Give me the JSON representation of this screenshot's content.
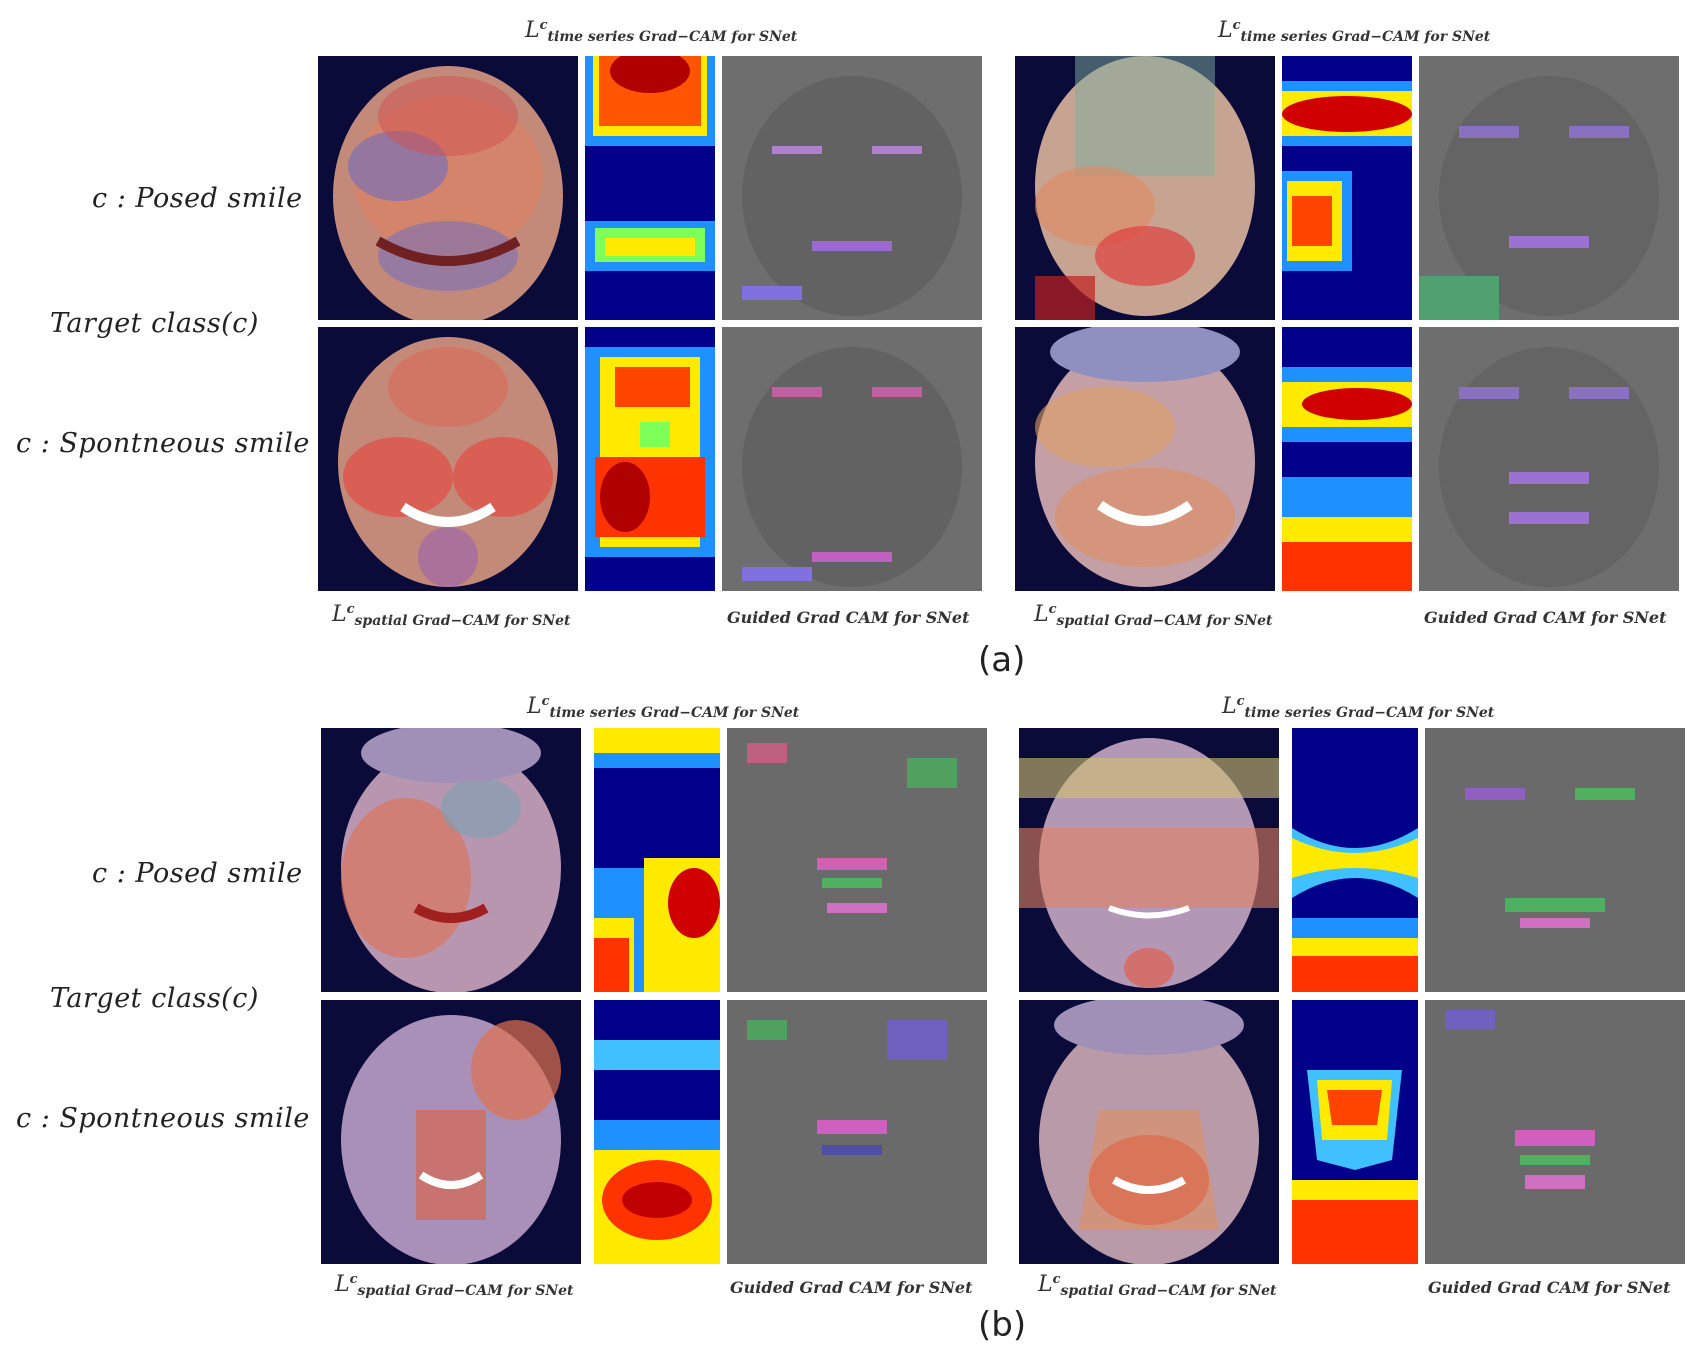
{
  "panels": [
    {
      "label": "(a)",
      "row_labels": {
        "posed": "c : Posed smile",
        "target": "Target class(c)",
        "spontaneous": "c : Spontneous smile"
      },
      "captions": {
        "time_series_left": {
          "L": "L",
          "sup": "c",
          "sub": "time series Grad−CAM for SNet"
        },
        "time_series_right": {
          "L": "L",
          "sup": "c",
          "sub": "time series Grad−CAM for SNet"
        },
        "spatial_left": {
          "L": "L",
          "sup": "c",
          "sub": "spatial Grad−CAM for SNet"
        },
        "spatial_right": {
          "L": "L",
          "sup": "c",
          "sub": "spatial Grad−CAM for SNet"
        },
        "guided_left": "Guided Grad CAM  for SNet",
        "guided_right": "Guided Grad CAM  for SNet"
      }
    },
    {
      "label": "(b)",
      "row_labels": {
        "posed": "c : Posed smile",
        "target": "Target class(c)",
        "spontaneous": "c : Spontneous smile"
      },
      "captions": {
        "time_series_left": {
          "L": "L",
          "sup": "c",
          "sub": "time series Grad−CAM for SNet"
        },
        "time_series_right": {
          "L": "L",
          "sup": "c",
          "sub": "time series Grad−CAM for SNet"
        },
        "spatial_left": {
          "L": "L",
          "sup": "c",
          "sub": "spatial Grad−CAM for SNet"
        },
        "spatial_right": {
          "L": "L",
          "sup": "c",
          "sub": "spatial Grad−CAM for SNet"
        },
        "guided_left": "Guided Grad CAM  for SNet",
        "guided_right": "Guided Grad CAM  for SNet"
      }
    }
  ],
  "colors": {
    "heat_bg": "#00008b",
    "guided_bg": "#7a7a7a",
    "face": "#c89a86"
  }
}
